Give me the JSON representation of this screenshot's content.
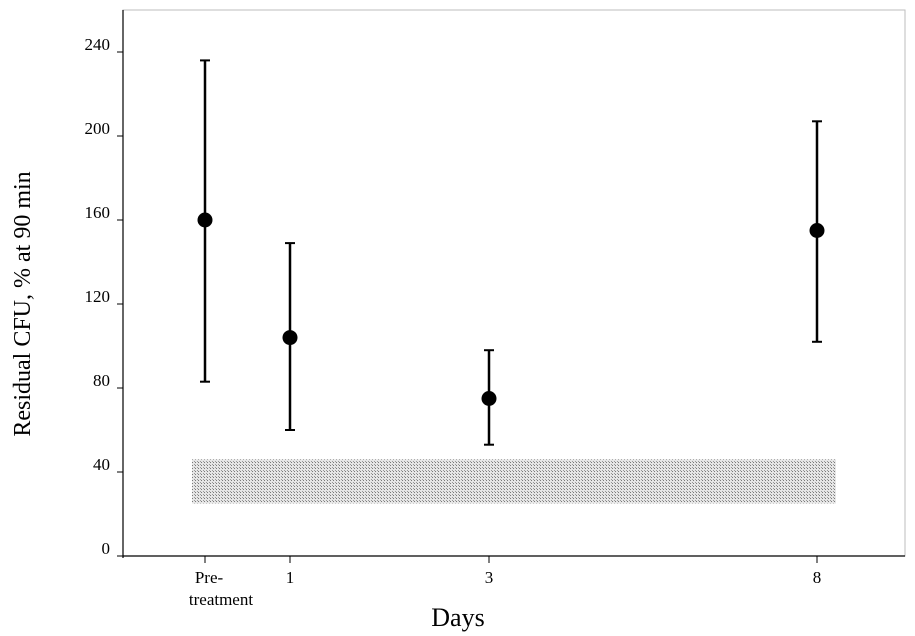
{
  "chart_data": {
    "type": "scatter",
    "title": "",
    "xlabel": "Days",
    "ylabel": "Residual CFU, % at 90 min",
    "ylim": [
      0,
      260
    ],
    "y_ticks": [
      0,
      40,
      80,
      120,
      160,
      200,
      240
    ],
    "x_ticks": [
      {
        "line1": "Pre-",
        "line2": "treatment"
      },
      {
        "line1": "1",
        "line2": ""
      },
      {
        "line1": "3",
        "line2": ""
      },
      {
        "line1": "8",
        "line2": ""
      }
    ],
    "categories": [
      "Pre-treatment",
      "1",
      "3",
      "8"
    ],
    "points": [
      {
        "x": "Pre-treatment",
        "mean": 160,
        "upper": 236,
        "lower": 83
      },
      {
        "x": "1",
        "mean": 104,
        "upper": 149,
        "lower": 60
      },
      {
        "x": "3",
        "mean": 75,
        "upper": 98,
        "lower": 53
      },
      {
        "x": "8",
        "mean": 155,
        "upper": 207,
        "lower": 102
      }
    ],
    "reference_band": {
      "from": 25,
      "to": 46,
      "color": "#d0d0d0"
    },
    "grid": false,
    "marker_color": "#000000"
  }
}
